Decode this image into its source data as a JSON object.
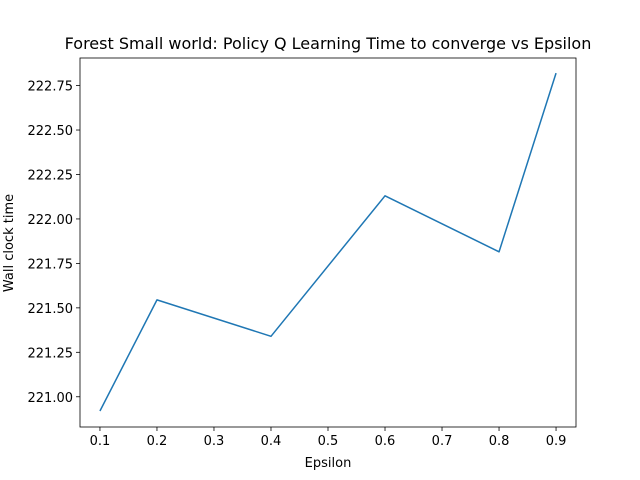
{
  "chart_data": {
    "type": "line",
    "title": "Forest Small world: Policy Q Learning Time to converge vs Epsilon",
    "xlabel": "Epsilon",
    "ylabel": "Wall clock time",
    "x": [
      0.1,
      0.2,
      0.4,
      0.6,
      0.8,
      0.9
    ],
    "series": [
      {
        "values": [
          220.92,
          221.545,
          221.34,
          222.13,
          221.815,
          222.82
        ],
        "color": "#1f77b4"
      }
    ],
    "xlim": [
      0.065,
      0.935
    ],
    "ylim": [
      220.83,
      222.905
    ],
    "xticks": [
      0.1,
      0.2,
      0.3,
      0.4,
      0.5,
      0.6,
      0.7,
      0.8,
      0.9
    ],
    "xtick_labels": [
      "0.1",
      "0.2",
      "0.3",
      "0.4",
      "0.5",
      "0.6",
      "0.7",
      "0.8",
      "0.9"
    ],
    "yticks": [
      221.0,
      221.25,
      221.5,
      221.75,
      222.0,
      222.25,
      222.5,
      222.75
    ],
    "ytick_labels": [
      "221.00",
      "221.25",
      "221.50",
      "221.75",
      "222.00",
      "222.25",
      "222.50",
      "222.75"
    ],
    "grid": false,
    "legend": "none"
  }
}
